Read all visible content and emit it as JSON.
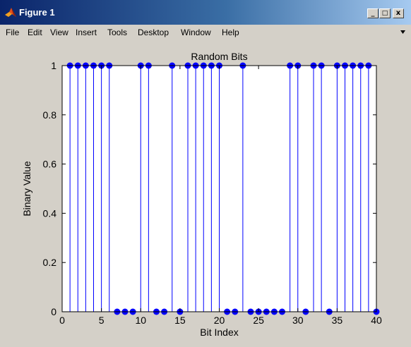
{
  "window": {
    "title": "Figure 1",
    "controls": {
      "minimize": "_",
      "maximize": "□",
      "close": "x"
    }
  },
  "menu": {
    "items": [
      "File",
      "Edit",
      "View",
      "Insert",
      "Tools",
      "Desktop",
      "Window",
      "Help"
    ]
  },
  "chart_data": {
    "type": "stem",
    "title": "Random Bits",
    "xlabel": "Bit Index",
    "ylabel": "Binary Value",
    "xlim": [
      0,
      40
    ],
    "ylim": [
      0,
      1
    ],
    "xticks": [
      0,
      5,
      10,
      15,
      20,
      25,
      30,
      35,
      40
    ],
    "yticks": [
      0,
      0.2,
      0.4,
      0.6,
      0.8,
      1
    ],
    "x": [
      1,
      2,
      3,
      4,
      5,
      6,
      7,
      8,
      9,
      10,
      11,
      12,
      13,
      14,
      15,
      16,
      17,
      18,
      19,
      20,
      21,
      22,
      23,
      24,
      25,
      26,
      27,
      28,
      29,
      30,
      31,
      32,
      33,
      34,
      35,
      36,
      37,
      38,
      39,
      40
    ],
    "values": [
      1,
      1,
      1,
      1,
      1,
      1,
      0,
      0,
      0,
      1,
      1,
      0,
      0,
      1,
      0,
      1,
      1,
      1,
      1,
      1,
      0,
      0,
      1,
      0,
      0,
      0,
      0,
      0,
      1,
      1,
      0,
      1,
      1,
      0,
      1,
      1,
      1,
      1,
      1,
      0
    ],
    "color": "#0000ff",
    "background": "#ffffff"
  }
}
